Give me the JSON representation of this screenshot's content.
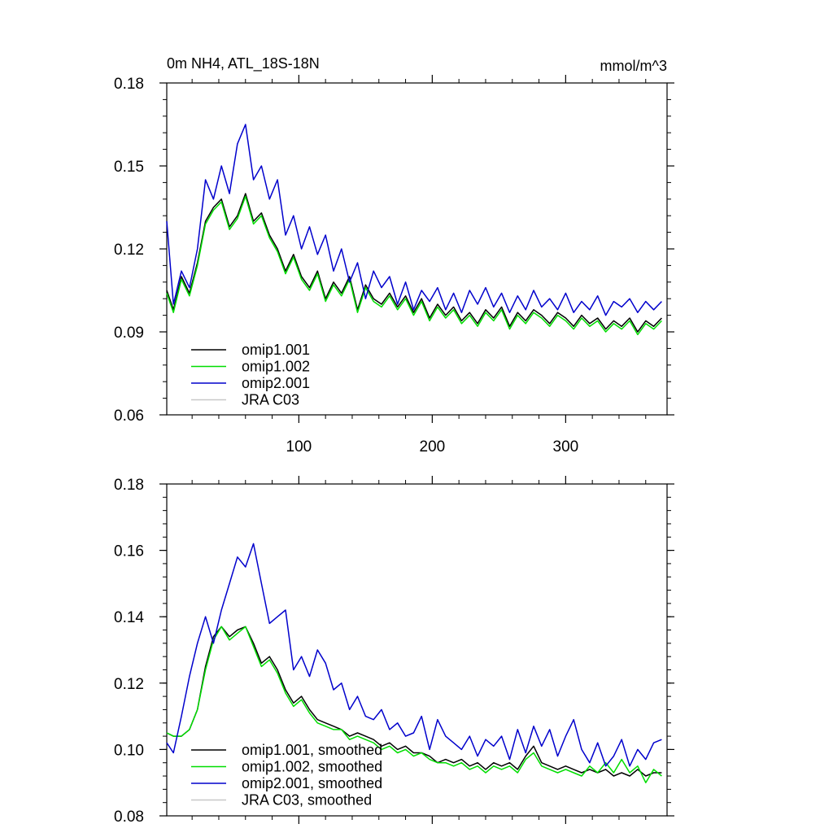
{
  "chart_data": [
    {
      "type": "line",
      "title": "0m NH4, ATL_18S-18N",
      "units": "mmol/m^3",
      "xlim": [
        1,
        376
      ],
      "ylim": [
        0.06,
        0.18
      ],
      "xticks": [
        100,
        200,
        300
      ],
      "yticks": [
        0.06,
        0.09,
        0.12,
        0.15,
        0.18
      ],
      "ytick_labels": [
        "0.06",
        "0.09",
        "0.12",
        "0.15",
        "0.18"
      ],
      "legend_position": "lower-left",
      "series": [
        {
          "name": "omip1.001",
          "color": "#000000",
          "x": [
            1,
            6,
            12,
            18,
            24,
            30,
            36,
            42,
            48,
            54,
            60,
            66,
            72,
            78,
            84,
            90,
            96,
            102,
            108,
            114,
            120,
            126,
            132,
            138,
            144,
            150,
            156,
            162,
            168,
            174,
            180,
            186,
            192,
            198,
            204,
            210,
            216,
            222,
            228,
            234,
            240,
            246,
            252,
            258,
            264,
            270,
            276,
            282,
            288,
            294,
            300,
            306,
            312,
            318,
            324,
            330,
            336,
            342,
            348,
            354,
            360,
            366,
            372
          ],
          "y": [
            0.105,
            0.098,
            0.11,
            0.104,
            0.115,
            0.13,
            0.135,
            0.138,
            0.128,
            0.132,
            0.14,
            0.13,
            0.133,
            0.125,
            0.12,
            0.112,
            0.118,
            0.11,
            0.106,
            0.112,
            0.102,
            0.108,
            0.104,
            0.11,
            0.098,
            0.107,
            0.102,
            0.1,
            0.104,
            0.099,
            0.103,
            0.097,
            0.102,
            0.095,
            0.1,
            0.096,
            0.099,
            0.094,
            0.097,
            0.093,
            0.098,
            0.095,
            0.099,
            0.092,
            0.097,
            0.094,
            0.098,
            0.096,
            0.093,
            0.097,
            0.095,
            0.092,
            0.096,
            0.093,
            0.095,
            0.091,
            0.094,
            0.092,
            0.095,
            0.09,
            0.094,
            0.092,
            0.095
          ]
        },
        {
          "name": "omip1.002",
          "color": "#00dd00",
          "x": [
            1,
            6,
            12,
            18,
            24,
            30,
            36,
            42,
            48,
            54,
            60,
            66,
            72,
            78,
            84,
            90,
            96,
            102,
            108,
            114,
            120,
            126,
            132,
            138,
            144,
            150,
            156,
            162,
            168,
            174,
            180,
            186,
            192,
            198,
            204,
            210,
            216,
            222,
            228,
            234,
            240,
            246,
            252,
            258,
            264,
            270,
            276,
            282,
            288,
            294,
            300,
            306,
            312,
            318,
            324,
            330,
            336,
            342,
            348,
            354,
            360,
            366,
            372
          ],
          "y": [
            0.104,
            0.097,
            0.109,
            0.103,
            0.114,
            0.129,
            0.134,
            0.137,
            0.127,
            0.131,
            0.139,
            0.129,
            0.132,
            0.124,
            0.119,
            0.111,
            0.117,
            0.109,
            0.105,
            0.111,
            0.101,
            0.107,
            0.103,
            0.109,
            0.097,
            0.106,
            0.101,
            0.099,
            0.103,
            0.098,
            0.102,
            0.096,
            0.101,
            0.094,
            0.099,
            0.095,
            0.098,
            0.093,
            0.096,
            0.092,
            0.097,
            0.094,
            0.098,
            0.091,
            0.096,
            0.093,
            0.097,
            0.095,
            0.092,
            0.096,
            0.094,
            0.091,
            0.095,
            0.092,
            0.094,
            0.09,
            0.093,
            0.091,
            0.094,
            0.089,
            0.093,
            0.091,
            0.094
          ]
        },
        {
          "name": "omip2.001",
          "color": "#0000cc",
          "x": [
            1,
            6,
            12,
            18,
            24,
            30,
            36,
            42,
            48,
            54,
            60,
            66,
            72,
            78,
            84,
            90,
            96,
            102,
            108,
            114,
            120,
            126,
            132,
            138,
            144,
            150,
            156,
            162,
            168,
            174,
            180,
            186,
            192,
            198,
            204,
            210,
            216,
            222,
            228,
            234,
            240,
            246,
            252,
            258,
            264,
            270,
            276,
            282,
            288,
            294,
            300,
            306,
            312,
            318,
            324,
            330,
            336,
            342,
            348,
            354,
            360,
            366,
            372
          ],
          "y": [
            0.13,
            0.1,
            0.112,
            0.106,
            0.12,
            0.145,
            0.138,
            0.15,
            0.14,
            0.158,
            0.165,
            0.145,
            0.15,
            0.138,
            0.145,
            0.125,
            0.132,
            0.12,
            0.128,
            0.118,
            0.125,
            0.112,
            0.12,
            0.108,
            0.115,
            0.102,
            0.112,
            0.106,
            0.11,
            0.1,
            0.108,
            0.098,
            0.105,
            0.101,
            0.106,
            0.098,
            0.104,
            0.097,
            0.105,
            0.1,
            0.106,
            0.099,
            0.104,
            0.097,
            0.103,
            0.098,
            0.105,
            0.099,
            0.102,
            0.098,
            0.104,
            0.097,
            0.101,
            0.098,
            0.103,
            0.096,
            0.101,
            0.099,
            0.102,
            0.097,
            0.101,
            0.098,
            0.101
          ]
        },
        {
          "name": "JRA C03",
          "color": "#c8c8c8",
          "x": [],
          "y": []
        }
      ]
    },
    {
      "type": "line",
      "xlim": [
        1,
        376
      ],
      "ylim": [
        0.08,
        0.18
      ],
      "yticks": [
        0.08,
        0.1,
        0.12,
        0.14,
        0.16,
        0.18
      ],
      "ytick_labels": [
        "0.08",
        "0.10",
        "0.12",
        "0.14",
        "0.16",
        "0.18"
      ],
      "legend_position": "lower-left",
      "series": [
        {
          "name": "omip1.001, smoothed",
          "color": "#000000",
          "x": [
            1,
            6,
            12,
            18,
            24,
            30,
            36,
            42,
            48,
            54,
            60,
            66,
            72,
            78,
            84,
            90,
            96,
            102,
            108,
            114,
            120,
            126,
            132,
            138,
            144,
            150,
            156,
            162,
            168,
            174,
            180,
            186,
            192,
            198,
            204,
            210,
            216,
            222,
            228,
            234,
            240,
            246,
            252,
            258,
            264,
            270,
            276,
            282,
            288,
            294,
            300,
            306,
            312,
            318,
            324,
            330,
            336,
            342,
            348,
            354,
            360,
            366,
            372
          ],
          "y": [
            0.105,
            0.104,
            0.104,
            0.106,
            0.112,
            0.125,
            0.134,
            0.137,
            0.134,
            0.136,
            0.137,
            0.132,
            0.126,
            0.128,
            0.124,
            0.118,
            0.114,
            0.116,
            0.112,
            0.109,
            0.108,
            0.107,
            0.106,
            0.104,
            0.105,
            0.104,
            0.103,
            0.101,
            0.102,
            0.1,
            0.101,
            0.099,
            0.099,
            0.098,
            0.096,
            0.097,
            0.096,
            0.097,
            0.095,
            0.096,
            0.094,
            0.096,
            0.095,
            0.096,
            0.094,
            0.098,
            0.101,
            0.096,
            0.095,
            0.094,
            0.095,
            0.094,
            0.093,
            0.094,
            0.093,
            0.094,
            0.092,
            0.093,
            0.092,
            0.094,
            0.092,
            0.093,
            0.093
          ]
        },
        {
          "name": "omip1.002, smoothed",
          "color": "#00dd00",
          "x": [
            1,
            6,
            12,
            18,
            24,
            30,
            36,
            42,
            48,
            54,
            60,
            66,
            72,
            78,
            84,
            90,
            96,
            102,
            108,
            114,
            120,
            126,
            132,
            138,
            144,
            150,
            156,
            162,
            168,
            174,
            180,
            186,
            192,
            198,
            204,
            210,
            216,
            222,
            228,
            234,
            240,
            246,
            252,
            258,
            264,
            270,
            276,
            282,
            288,
            294,
            300,
            306,
            312,
            318,
            324,
            330,
            336,
            342,
            348,
            354,
            360,
            366,
            372
          ],
          "y": [
            0.105,
            0.104,
            0.104,
            0.106,
            0.112,
            0.124,
            0.133,
            0.137,
            0.133,
            0.135,
            0.137,
            0.131,
            0.125,
            0.127,
            0.123,
            0.117,
            0.113,
            0.115,
            0.111,
            0.108,
            0.107,
            0.106,
            0.106,
            0.103,
            0.104,
            0.103,
            0.102,
            0.1,
            0.101,
            0.099,
            0.1,
            0.098,
            0.099,
            0.097,
            0.096,
            0.096,
            0.095,
            0.096,
            0.094,
            0.095,
            0.093,
            0.095,
            0.094,
            0.095,
            0.093,
            0.097,
            0.099,
            0.095,
            0.094,
            0.093,
            0.094,
            0.093,
            0.092,
            0.095,
            0.093,
            0.096,
            0.093,
            0.097,
            0.093,
            0.095,
            0.09,
            0.094,
            0.092
          ]
        },
        {
          "name": "omip2.001, smoothed",
          "color": "#0000cc",
          "x": [
            1,
            6,
            12,
            18,
            24,
            30,
            36,
            42,
            48,
            54,
            60,
            66,
            72,
            78,
            84,
            90,
            96,
            102,
            108,
            114,
            120,
            126,
            132,
            138,
            144,
            150,
            156,
            162,
            168,
            174,
            180,
            186,
            192,
            198,
            204,
            210,
            216,
            222,
            228,
            234,
            240,
            246,
            252,
            258,
            264,
            270,
            276,
            282,
            288,
            294,
            300,
            306,
            312,
            318,
            324,
            330,
            336,
            342,
            348,
            354,
            360,
            366,
            372
          ],
          "y": [
            0.102,
            0.099,
            0.11,
            0.122,
            0.132,
            0.14,
            0.132,
            0.142,
            0.15,
            0.158,
            0.155,
            0.162,
            0.15,
            0.138,
            0.14,
            0.142,
            0.124,
            0.128,
            0.122,
            0.13,
            0.126,
            0.118,
            0.12,
            0.112,
            0.116,
            0.11,
            0.109,
            0.112,
            0.106,
            0.108,
            0.104,
            0.105,
            0.11,
            0.1,
            0.109,
            0.104,
            0.102,
            0.1,
            0.104,
            0.098,
            0.103,
            0.101,
            0.104,
            0.097,
            0.106,
            0.099,
            0.107,
            0.101,
            0.106,
            0.098,
            0.104,
            0.109,
            0.1,
            0.096,
            0.102,
            0.095,
            0.098,
            0.103,
            0.095,
            0.1,
            0.097,
            0.102,
            0.103
          ]
        },
        {
          "name": "JRA C03, smoothed",
          "color": "#c8c8c8",
          "x": [],
          "y": []
        }
      ]
    }
  ]
}
